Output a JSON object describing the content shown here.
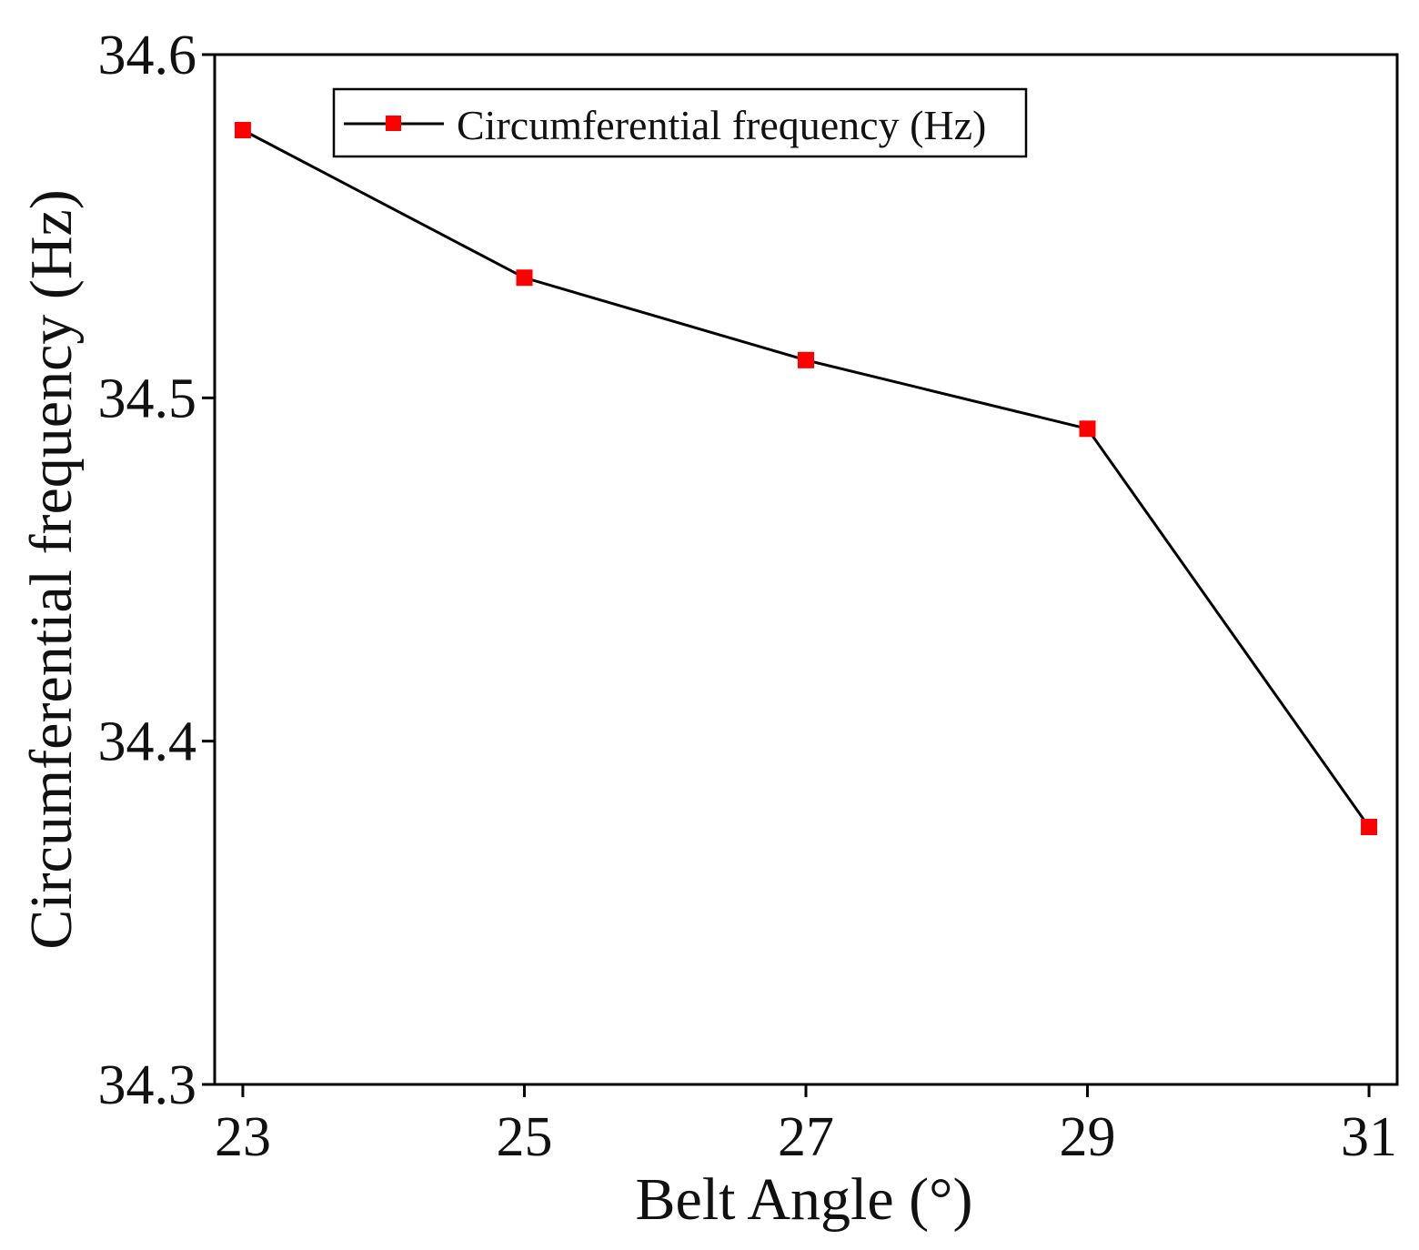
{
  "chart_data": {
    "type": "line",
    "title": "",
    "xlabel": "Belt Angle (°)",
    "ylabel": "Circumferential frequency (Hz)",
    "x": [
      23,
      25,
      27,
      29,
      31
    ],
    "series": [
      {
        "name": "Circumferential frequency (Hz)",
        "values": [
          34.578,
          34.535,
          34.511,
          34.491,
          34.375
        ],
        "line_color": "#000000",
        "marker_color": "#ff0000",
        "marker": "square"
      }
    ],
    "xlim": [
      22.8,
      31.2
    ],
    "ylim": [
      34.3,
      34.6
    ],
    "xticks": [
      23,
      25,
      27,
      29,
      31
    ],
    "xtick_labels": [
      "23",
      "25",
      "27",
      "29",
      "31"
    ],
    "yticks": [
      34.3,
      34.4,
      34.5,
      34.6
    ],
    "ytick_labels": [
      "34.3",
      "34.4",
      "34.5",
      "34.6"
    ],
    "grid": false,
    "legend_position": "top"
  }
}
